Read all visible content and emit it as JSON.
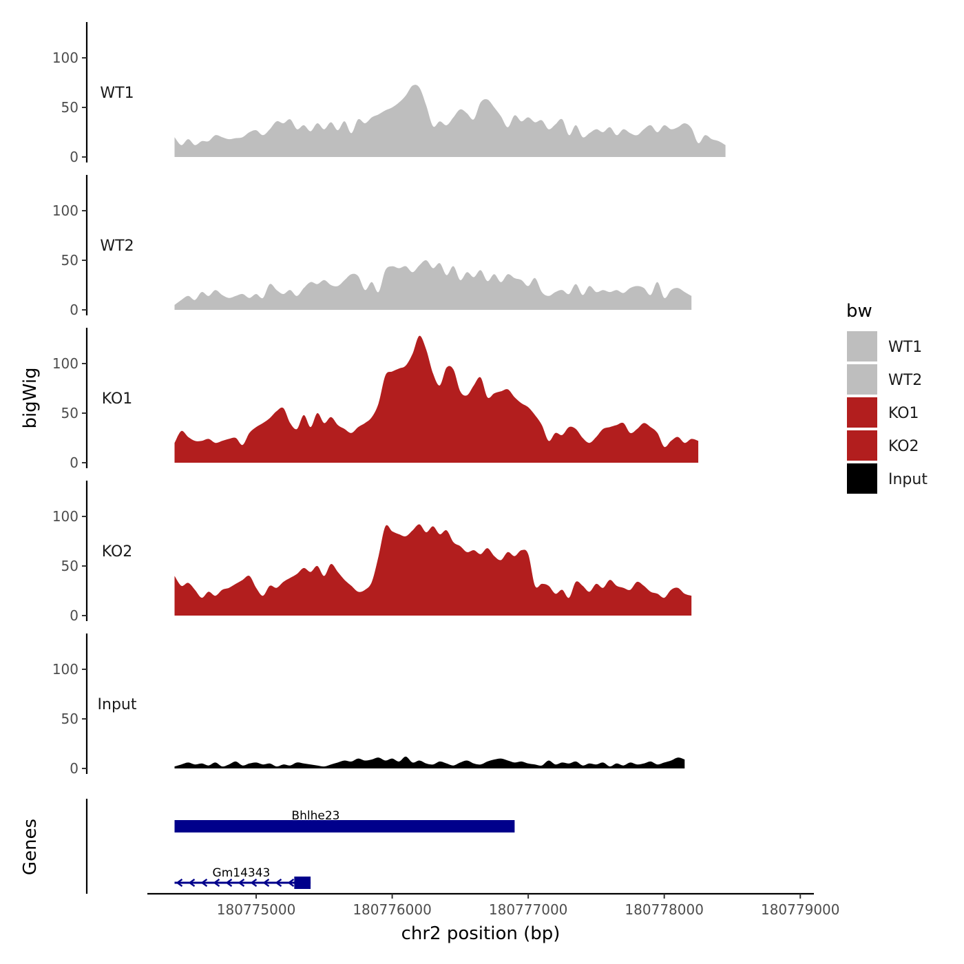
{
  "chart_data": {
    "type": "area",
    "ylabel": "bigWig",
    "xlabel": "chr2 position (bp)",
    "xlim": [
      180774200,
      180779100
    ],
    "ylim": [
      0,
      135
    ],
    "y_ticks": [
      0,
      50,
      100
    ],
    "y_tick_labels": [
      "0",
      "50",
      "100"
    ],
    "x_ticks": [
      180775000,
      180776000,
      180777000,
      180778000,
      180779000
    ],
    "x_tick_labels": [
      "180775000",
      "180776000",
      "180777000",
      "180778000",
      "180779000"
    ],
    "x_start": 180774400,
    "x_step": 50,
    "series": [
      {
        "name": "WT1",
        "color": "#BEBEBE",
        "values": [
          20,
          12,
          18,
          12,
          16,
          16,
          22,
          20,
          18,
          19,
          20,
          25,
          27,
          22,
          28,
          36,
          34,
          38,
          28,
          32,
          26,
          34,
          28,
          35,
          27,
          36,
          24,
          38,
          34,
          40,
          43,
          47,
          50,
          55,
          62,
          72,
          70,
          52,
          31,
          36,
          32,
          40,
          48,
          44,
          38,
          55,
          58,
          50,
          41,
          30,
          42,
          36,
          40,
          35,
          37,
          28,
          33,
          38,
          22,
          32,
          20,
          24,
          28,
          25,
          30,
          22,
          28,
          24,
          22,
          28,
          32,
          25,
          32,
          28,
          30,
          34,
          29,
          14,
          22,
          18,
          16,
          12
        ]
      },
      {
        "name": "WT2",
        "color": "#BEBEBE",
        "values": [
          5,
          10,
          14,
          10,
          18,
          14,
          20,
          15,
          12,
          14,
          16,
          12,
          16,
          12,
          26,
          20,
          16,
          20,
          14,
          22,
          28,
          26,
          30,
          25,
          24,
          30,
          36,
          34,
          20,
          28,
          18,
          40,
          44,
          42,
          44,
          38,
          45,
          50,
          42,
          47,
          35,
          44,
          30,
          38,
          33,
          40,
          29,
          36,
          28,
          36,
          32,
          30,
          24,
          32,
          18,
          14,
          18,
          20,
          16,
          26,
          15,
          24,
          18,
          20,
          18,
          20,
          17,
          22,
          24,
          22,
          15,
          28,
          12,
          20,
          22,
          18,
          14
        ]
      },
      {
        "name": "KO1",
        "color": "#B21E1E",
        "values": [
          20,
          32,
          26,
          22,
          22,
          24,
          20,
          22,
          24,
          25,
          18,
          30,
          36,
          40,
          45,
          52,
          55,
          40,
          34,
          48,
          36,
          50,
          40,
          46,
          38,
          34,
          30,
          36,
          40,
          46,
          60,
          88,
          92,
          95,
          98,
          110,
          128,
          114,
          90,
          78,
          96,
          94,
          72,
          68,
          78,
          86,
          66,
          70,
          72,
          74,
          66,
          60,
          56,
          48,
          38,
          22,
          30,
          28,
          36,
          34,
          25,
          20,
          26,
          34,
          36,
          38,
          40,
          30,
          34,
          40,
          36,
          30,
          16,
          22,
          26,
          20,
          24,
          22
        ]
      },
      {
        "name": "KO2",
        "color": "#B21E1E",
        "values": [
          40,
          30,
          33,
          26,
          18,
          24,
          20,
          26,
          28,
          32,
          36,
          40,
          28,
          20,
          30,
          28,
          34,
          38,
          42,
          48,
          44,
          50,
          40,
          52,
          44,
          36,
          30,
          24,
          26,
          34,
          60,
          90,
          85,
          82,
          80,
          86,
          92,
          84,
          90,
          82,
          86,
          74,
          70,
          64,
          66,
          62,
          68,
          60,
          56,
          64,
          60,
          66,
          62,
          30,
          32,
          30,
          22,
          26,
          18,
          34,
          30,
          24,
          32,
          28,
          36,
          30,
          28,
          26,
          34,
          30,
          24,
          22,
          18,
          26,
          28,
          22,
          20
        ]
      },
      {
        "name": "Input",
        "color": "#000000",
        "values": [
          2,
          4,
          6,
          4,
          5,
          3,
          6,
          2,
          4,
          7,
          3,
          5,
          6,
          4,
          5,
          2,
          4,
          3,
          6,
          5,
          4,
          3,
          2,
          4,
          6,
          8,
          7,
          10,
          8,
          9,
          11,
          8,
          10,
          7,
          12,
          6,
          8,
          5,
          4,
          7,
          5,
          3,
          6,
          8,
          5,
          4,
          7,
          9,
          10,
          8,
          6,
          7,
          5,
          4,
          3,
          8,
          4,
          6,
          5,
          7,
          3,
          5,
          4,
          6,
          2,
          5,
          3,
          6,
          4,
          5,
          7,
          4,
          6,
          8,
          11,
          9
        ]
      }
    ],
    "genes": {
      "label": "Genes",
      "tracks": [
        {
          "name": "Bhlhe23",
          "start": 180774400,
          "end": 180776900,
          "strand": "-",
          "color": "#00008B",
          "thick": true
        },
        {
          "name": "Gm14343",
          "start": 180774400,
          "end": 180775400,
          "strand": "-",
          "color": "#00008B",
          "thick_start": 180775280,
          "thick_end": 180775400
        }
      ]
    },
    "legend": {
      "title": "bw",
      "position": "right",
      "entries": [
        {
          "label": "WT1",
          "color": "#BEBEBE"
        },
        {
          "label": "WT2",
          "color": "#BEBEBE"
        },
        {
          "label": "KO1",
          "color": "#B21E1E"
        },
        {
          "label": "KO2",
          "color": "#B21E1E"
        },
        {
          "label": "Input",
          "color": "#000000"
        }
      ]
    }
  }
}
